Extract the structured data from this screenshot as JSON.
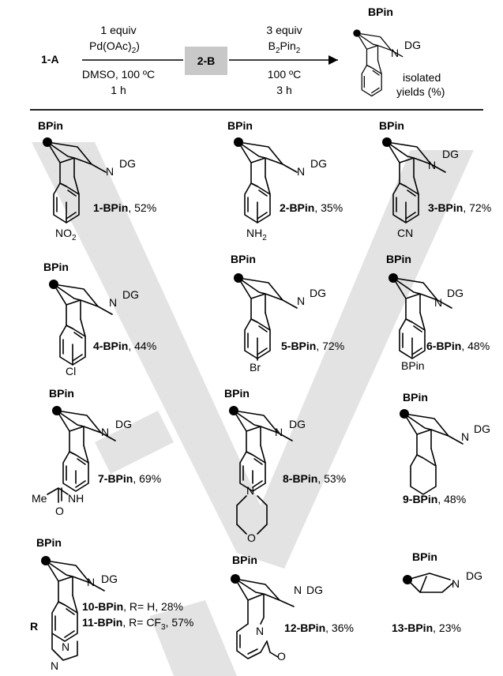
{
  "scheme": {
    "start": "1-A",
    "step1": {
      "line1": "1 equiv",
      "reagent": "Pd(OAc)",
      "reagent_sub": "2",
      "cond1": "DMSO, 100 ºC",
      "cond2": "1 h"
    },
    "intermediate": "2-B",
    "step2": {
      "line1": "3 equiv",
      "reagent_a": "B",
      "sub_a": "2",
      "reagent_b": "Pin",
      "sub_b": "2",
      "cond1": "100 ºC",
      "cond2": "3 h"
    },
    "product_bpin": "BPin",
    "product_dg": "DG",
    "product_n": "N",
    "note1": "isolated",
    "note2": "yields (%)"
  },
  "compounds": [
    {
      "bpin": "BPin",
      "n": "N",
      "dg": "DG",
      "code": "1-BPin",
      "yield": ", 52%",
      "sub": "NO",
      "sub_sub": "2"
    },
    {
      "bpin": "BPin",
      "n": "N",
      "dg": "DG",
      "code": "2-BPin",
      "yield": ", 35%",
      "sub": "NH",
      "sub_sub": "2"
    },
    {
      "bpin": "BPin",
      "n": "N",
      "dg": "DG",
      "code": "3-BPin",
      "yield": ", 72%",
      "sub": "CN"
    },
    {
      "bpin": "BPin",
      "n": "N",
      "dg": "DG",
      "code": "4-BPin",
      "yield": ", 44%",
      "sub": "Cl"
    },
    {
      "bpin": "BPin",
      "n": "N",
      "dg": "DG",
      "code": "5-BPin",
      "yield": ", 72%",
      "sub": "Br"
    },
    {
      "bpin": "BPin",
      "n": "N",
      "dg": "DG",
      "code": "6-BPin",
      "yield": ", 48%",
      "sub": "BPin"
    },
    {
      "bpin": "BPin",
      "n": "N",
      "dg": "DG",
      "code": "7-BPin",
      "yield": ", 69%",
      "sub_nh": "NH",
      "sub_me": "Me",
      "sub_o": "O"
    },
    {
      "bpin": "BPin",
      "n": "N",
      "dg": "DG",
      "code": "8-BPin",
      "yield": ", 53%",
      "sub_n": "N",
      "sub_o": "O"
    },
    {
      "bpin": "BPin",
      "n": "N",
      "dg": "DG",
      "code": "9-BPin",
      "yield": ", 48%"
    },
    {
      "bpin": "BPin",
      "n": "N",
      "dg": "DG",
      "code10": "10-BPin",
      "yield10": ", R= H, 28%",
      "code11": "11-BPin",
      "yield11a": ", R= CF",
      "yield11sub": "3",
      "yield11b": ", 57%",
      "r": "R",
      "n1": "N",
      "n2": "N"
    },
    {
      "bpin": "BPin",
      "n": "N",
      "dg": "DG",
      "code": "12-BPin",
      "yield": ", 36%",
      "n_ring": "N",
      "o": "O"
    },
    {
      "bpin": "BPin",
      "n": "N",
      "dg": "DG",
      "code": "13-BPin",
      "yield": ", 23%"
    }
  ]
}
